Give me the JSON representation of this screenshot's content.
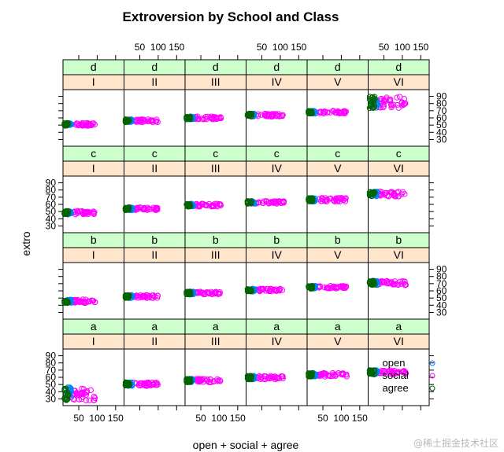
{
  "chart_data": {
    "type": "scatter",
    "title": "Extroversion by School and Class",
    "xlabel": "open + social + agree",
    "ylabel": "extro",
    "school_levels": [
      "I",
      "II",
      "III",
      "IV",
      "V",
      "VI"
    ],
    "class_levels": [
      "d",
      "c",
      "b",
      "a"
    ],
    "xlim": [
      20,
      160
    ],
    "ylim": [
      25,
      95
    ],
    "x_ticks": [
      50,
      100,
      150
    ],
    "y_ticks": [
      30,
      40,
      50,
      60,
      70,
      80,
      90
    ],
    "legend": {
      "placement": "inside-panel a/VI",
      "entries": [
        "open",
        "social",
        "agree"
      ]
    },
    "series_colors": {
      "open": "#0080ff",
      "social": "#ff00ff",
      "agree": "#006400"
    },
    "panels": [
      {
        "school": "I",
        "class": "d",
        "open": {
          "x": [
            18,
            30
          ],
          "y": [
            49,
            53
          ]
        },
        "social": {
          "x": [
            34,
            95
          ],
          "y": [
            49,
            53
          ]
        },
        "agree": {
          "x": [
            8,
            22
          ],
          "y": [
            49,
            53
          ]
        }
      },
      {
        "school": "II",
        "class": "d",
        "open": {
          "x": [
            18,
            30
          ],
          "y": [
            54,
            58
          ]
        },
        "social": {
          "x": [
            34,
            100
          ],
          "y": [
            54,
            58
          ]
        },
        "agree": {
          "x": [
            8,
            22
          ],
          "y": [
            54,
            58
          ]
        }
      },
      {
        "school": "III",
        "class": "d",
        "open": {
          "x": [
            18,
            30
          ],
          "y": [
            58,
            62
          ]
        },
        "social": {
          "x": [
            34,
            105
          ],
          "y": [
            58,
            62
          ]
        },
        "agree": {
          "x": [
            8,
            22
          ],
          "y": [
            58,
            62
          ]
        }
      },
      {
        "school": "IV",
        "class": "d",
        "open": {
          "x": [
            18,
            30
          ],
          "y": [
            62,
            66
          ]
        },
        "social": {
          "x": [
            34,
            110
          ],
          "y": [
            62,
            66
          ]
        },
        "agree": {
          "x": [
            8,
            22
          ],
          "y": [
            62,
            66
          ]
        }
      },
      {
        "school": "V",
        "class": "d",
        "open": {
          "x": [
            18,
            30
          ],
          "y": [
            66,
            70
          ]
        },
        "social": {
          "x": [
            34,
            115
          ],
          "y": [
            66,
            70
          ]
        },
        "agree": {
          "x": [
            8,
            22
          ],
          "y": [
            66,
            70
          ]
        }
      },
      {
        "school": "VI",
        "class": "d",
        "open": {
          "x": [
            18,
            35
          ],
          "y": [
            74,
            86
          ]
        },
        "social": {
          "x": [
            35,
            110
          ],
          "y": [
            74,
            90
          ]
        },
        "agree": {
          "x": [
            6,
            25
          ],
          "y": [
            73,
            90
          ]
        }
      },
      {
        "school": "I",
        "class": "c",
        "open": {
          "x": [
            18,
            30
          ],
          "y": [
            46,
            51
          ]
        },
        "social": {
          "x": [
            34,
            95
          ],
          "y": [
            46,
            51
          ]
        },
        "agree": {
          "x": [
            8,
            22
          ],
          "y": [
            46,
            51
          ]
        }
      },
      {
        "school": "II",
        "class": "c",
        "open": {
          "x": [
            18,
            30
          ],
          "y": [
            52,
            56
          ]
        },
        "social": {
          "x": [
            34,
            100
          ],
          "y": [
            52,
            56
          ]
        },
        "agree": {
          "x": [
            8,
            22
          ],
          "y": [
            52,
            56
          ]
        }
      },
      {
        "school": "III",
        "class": "c",
        "open": {
          "x": [
            18,
            30
          ],
          "y": [
            57,
            61
          ]
        },
        "social": {
          "x": [
            34,
            105
          ],
          "y": [
            57,
            61
          ]
        },
        "agree": {
          "x": [
            8,
            22
          ],
          "y": [
            57,
            61
          ]
        }
      },
      {
        "school": "IV",
        "class": "c",
        "open": {
          "x": [
            18,
            30
          ],
          "y": [
            61,
            65
          ]
        },
        "social": {
          "x": [
            34,
            110
          ],
          "y": [
            61,
            65
          ]
        },
        "agree": {
          "x": [
            8,
            22
          ],
          "y": [
            61,
            65
          ]
        }
      },
      {
        "school": "V",
        "class": "c",
        "open": {
          "x": [
            18,
            30
          ],
          "y": [
            64,
            69
          ]
        },
        "social": {
          "x": [
            34,
            115
          ],
          "y": [
            64,
            69
          ]
        },
        "agree": {
          "x": [
            8,
            22
          ],
          "y": [
            64,
            69
          ]
        }
      },
      {
        "school": "VI",
        "class": "c",
        "open": {
          "x": [
            18,
            32
          ],
          "y": [
            71,
            78
          ]
        },
        "social": {
          "x": [
            35,
            110
          ],
          "y": [
            71,
            78
          ]
        },
        "agree": {
          "x": [
            8,
            25
          ],
          "y": [
            71,
            78
          ]
        }
      },
      {
        "school": "I",
        "class": "b",
        "open": {
          "x": [
            18,
            30
          ],
          "y": [
            43,
            48
          ]
        },
        "social": {
          "x": [
            34,
            95
          ],
          "y": [
            43,
            48
          ]
        },
        "agree": {
          "x": [
            8,
            22
          ],
          "y": [
            43,
            48
          ]
        }
      },
      {
        "school": "II",
        "class": "b",
        "open": {
          "x": [
            18,
            30
          ],
          "y": [
            50,
            54
          ]
        },
        "social": {
          "x": [
            34,
            100
          ],
          "y": [
            50,
            54
          ]
        },
        "agree": {
          "x": [
            8,
            22
          ],
          "y": [
            50,
            54
          ]
        }
      },
      {
        "school": "III",
        "class": "b",
        "open": {
          "x": [
            18,
            30
          ],
          "y": [
            55,
            59
          ]
        },
        "social": {
          "x": [
            34,
            105
          ],
          "y": [
            55,
            59
          ]
        },
        "agree": {
          "x": [
            8,
            22
          ],
          "y": [
            55,
            59
          ]
        }
      },
      {
        "school": "IV",
        "class": "b",
        "open": {
          "x": [
            18,
            30
          ],
          "y": [
            59,
            63
          ]
        },
        "social": {
          "x": [
            34,
            110
          ],
          "y": [
            59,
            63
          ]
        },
        "agree": {
          "x": [
            8,
            22
          ],
          "y": [
            59,
            63
          ]
        }
      },
      {
        "school": "V",
        "class": "b",
        "open": {
          "x": [
            18,
            30
          ],
          "y": [
            63,
            67
          ]
        },
        "social": {
          "x": [
            34,
            115
          ],
          "y": [
            63,
            67
          ]
        },
        "agree": {
          "x": [
            8,
            22
          ],
          "y": [
            63,
            67
          ]
        }
      },
      {
        "school": "VI",
        "class": "b",
        "open": {
          "x": [
            18,
            32
          ],
          "y": [
            68,
            74
          ]
        },
        "social": {
          "x": [
            35,
            110
          ],
          "y": [
            68,
            74
          ]
        },
        "agree": {
          "x": [
            8,
            25
          ],
          "y": [
            68,
            74
          ]
        }
      },
      {
        "school": "I",
        "class": "a",
        "open": {
          "x": [
            18,
            30
          ],
          "y": [
            28,
            46
          ]
        },
        "social": {
          "x": [
            34,
            95
          ],
          "y": [
            28,
            46
          ]
        },
        "agree": {
          "x": [
            8,
            22
          ],
          "y": [
            28,
            46
          ]
        }
      },
      {
        "school": "II",
        "class": "a",
        "open": {
          "x": [
            18,
            30
          ],
          "y": [
            48,
            53
          ]
        },
        "social": {
          "x": [
            34,
            100
          ],
          "y": [
            48,
            53
          ]
        },
        "agree": {
          "x": [
            8,
            22
          ],
          "y": [
            48,
            53
          ]
        }
      },
      {
        "school": "III",
        "class": "a",
        "open": {
          "x": [
            18,
            30
          ],
          "y": [
            53,
            58
          ]
        },
        "social": {
          "x": [
            34,
            105
          ],
          "y": [
            53,
            58
          ]
        },
        "agree": {
          "x": [
            8,
            22
          ],
          "y": [
            53,
            58
          ]
        }
      },
      {
        "school": "IV",
        "class": "a",
        "open": {
          "x": [
            18,
            30
          ],
          "y": [
            57,
            62
          ]
        },
        "social": {
          "x": [
            34,
            110
          ],
          "y": [
            57,
            62
          ]
        },
        "agree": {
          "x": [
            8,
            22
          ],
          "y": [
            57,
            62
          ]
        }
      },
      {
        "school": "V",
        "class": "a",
        "open": {
          "x": [
            18,
            30
          ],
          "y": [
            61,
            66
          ]
        },
        "social": {
          "x": [
            34,
            115
          ],
          "y": [
            61,
            66
          ]
        },
        "agree": {
          "x": [
            8,
            22
          ],
          "y": [
            61,
            66
          ]
        }
      },
      {
        "school": "VI",
        "class": "a",
        "open": {
          "x": [
            18,
            32
          ],
          "y": [
            64,
            70
          ]
        },
        "social": {
          "x": [
            35,
            110
          ],
          "y": [
            64,
            70
          ]
        },
        "agree": {
          "x": [
            8,
            25
          ],
          "y": [
            64,
            70
          ]
        }
      }
    ]
  },
  "watermark": "@稀土掘金技术社区",
  "colors": {
    "strip_outer": "#ccffcc",
    "strip_inner": "#ffe5cc",
    "panel_border": "#000000"
  }
}
